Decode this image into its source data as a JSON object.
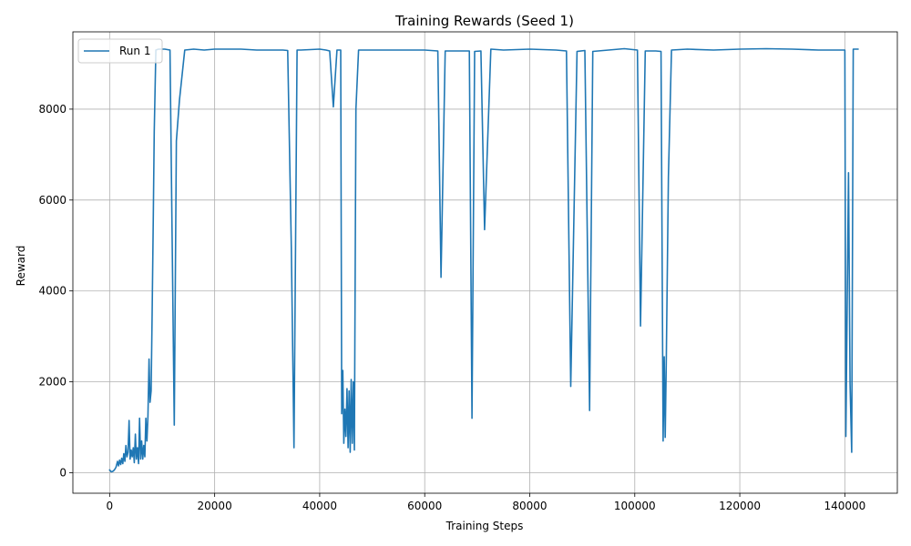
{
  "chart_data": {
    "type": "line",
    "title": "Training Rewards (Seed 1)",
    "xlabel": "Training Steps",
    "ylabel": "Reward",
    "xlim": [
      -7000,
      150000
    ],
    "ylim": [
      -450,
      9700
    ],
    "xticks": [
      0,
      20000,
      40000,
      60000,
      80000,
      100000,
      120000,
      140000
    ],
    "yticks": [
      0,
      2000,
      4000,
      6000,
      8000
    ],
    "grid": true,
    "legend": "top-left",
    "series": [
      {
        "name": "Run 1",
        "color": "#1f77b4",
        "x": [
          0,
          300,
          600,
          900,
          1200,
          1500,
          1700,
          1900,
          2100,
          2300,
          2500,
          2700,
          2900,
          3100,
          3300,
          3500,
          3700,
          3900,
          4100,
          4300,
          4500,
          4700,
          4900,
          5100,
          5300,
          5500,
          5700,
          5900,
          6100,
          6300,
          6500,
          6700,
          6900,
          7100,
          7300,
          7500,
          7700,
          7900,
          8100,
          8300,
          8500,
          8800,
          9300,
          9900,
          10500,
          11500,
          12300,
          12700,
          13300,
          14300,
          16000,
          18000,
          20000,
          25000,
          28000,
          30000,
          33000,
          33900,
          34600,
          35100,
          35700,
          36400,
          40000,
          41200,
          41900,
          42600,
          43300,
          44000,
          44200,
          44400,
          44600,
          44800,
          45000,
          45200,
          45400,
          45600,
          45800,
          46000,
          46200,
          46400,
          46600,
          46900,
          47400,
          50000,
          55000,
          60000,
          62500,
          63100,
          63900,
          68500,
          69000,
          69500,
          70700,
          71400,
          72600,
          75000,
          80000,
          85000,
          87000,
          87800,
          89000,
          90500,
          91400,
          92000,
          95000,
          98000,
          100500,
          101100,
          102000,
          104000,
          105000,
          105400,
          105600,
          105800,
          106000,
          106400,
          107000,
          110000,
          115000,
          120000,
          125000,
          130000,
          135000,
          140000,
          140200,
          140700,
          141000,
          141300,
          141600,
          142000,
          142500
        ],
        "y": [
          60,
          20,
          30,
          60,
          120,
          250,
          150,
          280,
          180,
          320,
          200,
          420,
          250,
          600,
          350,
          450,
          1150,
          300,
          500,
          350,
          550,
          220,
          850,
          300,
          550,
          200,
          1200,
          300,
          700,
          300,
          600,
          350,
          1200,
          700,
          1250,
          2500,
          1550,
          1800,
          3500,
          5500,
          7500,
          9300,
          9320,
          9320,
          9320,
          9300,
          1050,
          7300,
          8200,
          9300,
          9320,
          9300,
          9320,
          9320,
          9300,
          9300,
          9300,
          9290,
          4950,
          550,
          9300,
          9300,
          9320,
          9300,
          9280,
          8050,
          9300,
          9300,
          1300,
          2250,
          650,
          1400,
          800,
          1850,
          550,
          1800,
          450,
          2050,
          650,
          2000,
          500,
          8000,
          9300,
          9300,
          9300,
          9300,
          9280,
          4300,
          9280,
          9280,
          1200,
          9270,
          9280,
          5350,
          9320,
          9300,
          9320,
          9300,
          9280,
          1900,
          9270,
          9290,
          1370,
          9270,
          9300,
          9330,
          9300,
          3230,
          9280,
          9280,
          9270,
          700,
          2550,
          780,
          2500,
          6500,
          9300,
          9320,
          9300,
          9320,
          9330,
          9320,
          9300,
          9300,
          800,
          6600,
          1950,
          450,
          9320,
          9320,
          9320
        ]
      }
    ]
  }
}
